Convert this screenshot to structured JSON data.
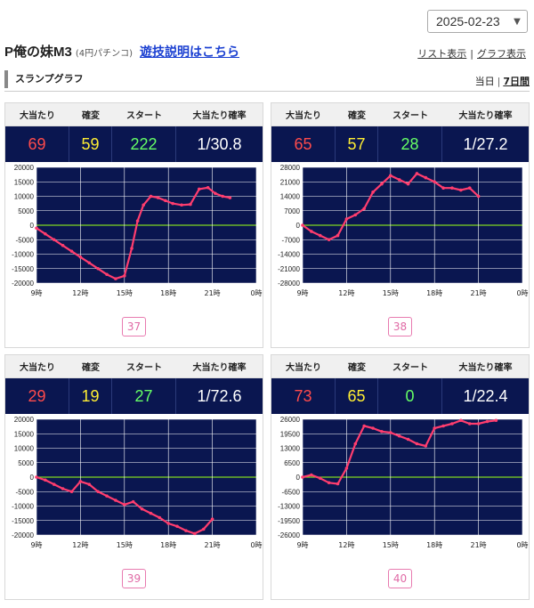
{
  "date_select": {
    "value": "2025-02-23"
  },
  "header": {
    "machine_name": "P俺の妹M3",
    "machine_sub": "(4円パチンコ)",
    "guide_link": "遊技説明はこちら",
    "list_view": "リスト表示",
    "graph_view": "グラフ表示",
    "separator": "|"
  },
  "section": {
    "title": "スランプグラフ",
    "range_today": "当日",
    "range_7days": "7日間",
    "separator": "|"
  },
  "stat_headers": [
    "大当たり",
    "確変",
    "スタート",
    "大当たり確率"
  ],
  "x_ticks": [
    "9時",
    "12時",
    "15時",
    "18時",
    "21時",
    "0時"
  ],
  "colors": {
    "plot_bg": "#0a1650",
    "grid": "#ffffff",
    "zero_line": "#7fd620",
    "series_line": "#ff3d6e",
    "big_hit": "#ff4b4b",
    "kakuhen": "#ffee33",
    "start": "#66ff66",
    "badge": "#e06aa5"
  },
  "machines": [
    {
      "number": "37",
      "big_hits": "69",
      "kakuhen": "59",
      "start": "222",
      "rate": "1/30.8",
      "chart_data": {
        "type": "line",
        "xlabel": "",
        "ylabel": "",
        "x_range_hours": [
          9,
          24
        ],
        "ylim": [
          -20000,
          20000
        ],
        "y_ticks": [
          "20000",
          "15000",
          "10000",
          "5000",
          "0",
          "-5000",
          "-10000",
          "-15000",
          "-20000"
        ],
        "x": [
          9.0,
          9.6,
          10.2,
          10.8,
          11.4,
          12.0,
          12.6,
          13.2,
          13.8,
          14.4,
          15.0,
          15.5,
          15.9,
          16.3,
          16.8,
          17.3,
          17.8,
          18.3,
          18.9,
          19.5,
          20.1,
          20.7,
          21.2,
          21.7,
          22.2
        ],
        "y": [
          -1000,
          -3000,
          -5000,
          -7000,
          -9000,
          -11000,
          -13000,
          -15000,
          -17000,
          -18500,
          -17500,
          -8000,
          1500,
          7000,
          10000,
          9500,
          8500,
          7500,
          7000,
          7200,
          12500,
          13000,
          11000,
          10000,
          9500
        ]
      }
    },
    {
      "number": "38",
      "big_hits": "65",
      "kakuhen": "57",
      "start": "28",
      "rate": "1/27.2",
      "chart_data": {
        "type": "line",
        "xlabel": "",
        "ylabel": "",
        "x_range_hours": [
          9,
          24
        ],
        "ylim": [
          -28000,
          28000
        ],
        "y_ticks": [
          "28000",
          "21000",
          "14000",
          "7000",
          "0",
          "-7000",
          "-14000",
          "-21000",
          "-28000"
        ],
        "x": [
          9.0,
          9.6,
          10.2,
          10.8,
          11.4,
          12.0,
          12.6,
          13.2,
          13.8,
          14.4,
          15.0,
          15.6,
          16.2,
          16.8,
          17.4,
          18.0,
          18.6,
          19.2,
          19.8,
          20.4,
          21.0
        ],
        "y": [
          0,
          -3000,
          -5000,
          -7000,
          -5000,
          3000,
          5000,
          8000,
          16000,
          20000,
          24000,
          22000,
          20000,
          25000,
          23000,
          21000,
          18000,
          18000,
          17000,
          18000,
          14000
        ]
      }
    },
    {
      "number": "39",
      "big_hits": "29",
      "kakuhen": "19",
      "start": "27",
      "rate": "1/72.6",
      "chart_data": {
        "type": "line",
        "xlabel": "",
        "ylabel": "",
        "x_range_hours": [
          9,
          24
        ],
        "ylim": [
          -20000,
          20000
        ],
        "y_ticks": [
          "20000",
          "15000",
          "10000",
          "5000",
          "0",
          "-5000",
          "-10000",
          "-15000",
          "-20000"
        ],
        "x": [
          9.0,
          9.6,
          10.2,
          10.8,
          11.4,
          12.0,
          12.6,
          13.2,
          13.8,
          14.4,
          15.0,
          15.6,
          16.2,
          16.8,
          17.4,
          18.0,
          18.6,
          19.2,
          19.8,
          20.4,
          21.0
        ],
        "y": [
          0,
          -1000,
          -2500,
          -4000,
          -5000,
          -1500,
          -2500,
          -5000,
          -6500,
          -8000,
          -9500,
          -8500,
          -11000,
          -12500,
          -14000,
          -16000,
          -17000,
          -18500,
          -19500,
          -18000,
          -14500
        ]
      }
    },
    {
      "number": "40",
      "big_hits": "73",
      "kakuhen": "65",
      "start": "0",
      "rate": "1/22.4",
      "chart_data": {
        "type": "line",
        "xlabel": "",
        "ylabel": "",
        "x_range_hours": [
          9,
          24
        ],
        "ylim": [
          -26000,
          26000
        ],
        "y_ticks": [
          "26000",
          "19500",
          "13000",
          "6500",
          "0",
          "-6500",
          "-13000",
          "-19500",
          "-26000"
        ],
        "x": [
          9.0,
          9.6,
          10.2,
          10.8,
          11.4,
          12.0,
          12.6,
          13.2,
          13.8,
          14.4,
          15.0,
          15.6,
          16.2,
          16.8,
          17.4,
          18.0,
          18.6,
          19.2,
          19.8,
          20.4,
          21.0,
          21.6,
          22.2
        ],
        "y": [
          0,
          1000,
          -500,
          -2500,
          -3000,
          4000,
          15000,
          23000,
          22000,
          20500,
          20000,
          18500,
          17000,
          15000,
          14000,
          22000,
          23000,
          24000,
          25500,
          24000,
          24000,
          25000,
          25500
        ]
      }
    }
  ]
}
